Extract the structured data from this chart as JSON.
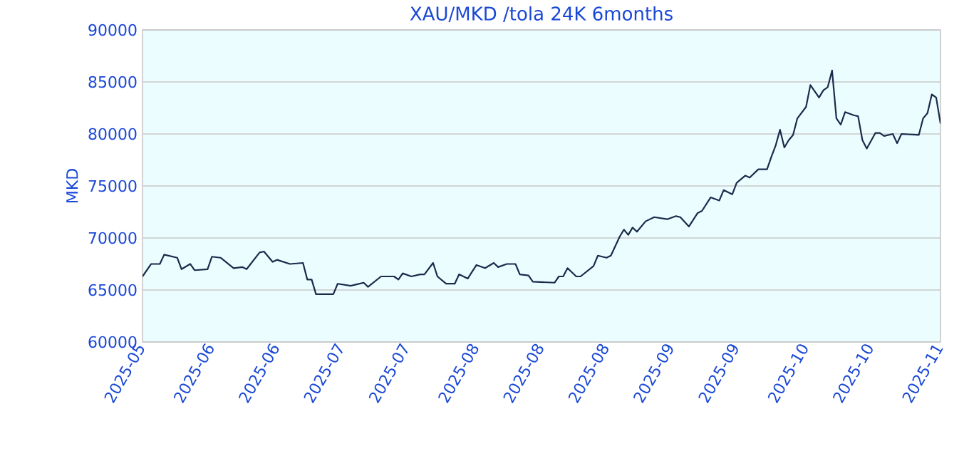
{
  "chart_data": {
    "type": "line",
    "title": "XAU/MKD /tola 24K 6months",
    "ylabel": "MKD",
    "x": [
      "2025-05-16",
      "2025-05-18",
      "2025-05-20",
      "2025-05-21",
      "2025-05-24",
      "2025-05-25",
      "2025-05-27",
      "2025-05-28",
      "2025-05-31",
      "2025-06-01",
      "2025-06-03",
      "2025-06-06",
      "2025-06-08",
      "2025-06-09",
      "2025-06-12",
      "2025-06-13",
      "2025-06-15",
      "2025-06-16",
      "2025-06-19",
      "2025-06-22",
      "2025-06-23",
      "2025-06-24",
      "2025-06-25",
      "2025-06-29",
      "2025-06-30",
      "2025-07-03",
      "2025-07-06",
      "2025-07-07",
      "2025-07-10",
      "2025-07-13",
      "2025-07-14",
      "2025-07-15",
      "2025-07-17",
      "2025-07-19",
      "2025-07-20",
      "2025-07-22",
      "2025-07-23",
      "2025-07-25",
      "2025-07-27",
      "2025-07-28",
      "2025-07-30",
      "2025-08-01",
      "2025-08-03",
      "2025-08-05",
      "2025-08-06",
      "2025-08-08",
      "2025-08-10",
      "2025-08-11",
      "2025-08-13",
      "2025-08-14",
      "2025-08-19",
      "2025-08-20",
      "2025-08-21",
      "2025-08-22",
      "2025-08-24",
      "2025-08-25",
      "2025-08-28",
      "2025-08-29",
      "2025-08-31",
      "2025-09-01",
      "2025-09-03",
      "2025-09-04",
      "2025-09-05",
      "2025-09-06",
      "2025-09-07",
      "2025-09-09",
      "2025-09-11",
      "2025-09-14",
      "2025-09-16",
      "2025-09-17",
      "2025-09-19",
      "2025-09-21",
      "2025-09-22",
      "2025-09-24",
      "2025-09-26",
      "2025-09-27",
      "2025-09-29",
      "2025-09-30",
      "2025-10-02",
      "2025-10-03",
      "2025-10-05",
      "2025-10-07",
      "2025-10-08",
      "2025-10-09",
      "2025-10-10",
      "2025-10-11",
      "2025-10-12",
      "2025-10-13",
      "2025-10-14",
      "2025-10-16",
      "2025-10-17",
      "2025-10-19",
      "2025-10-20",
      "2025-10-21",
      "2025-10-22",
      "2025-10-23",
      "2025-10-24",
      "2025-10-25",
      "2025-10-27",
      "2025-10-28",
      "2025-10-29",
      "2025-10-30",
      "2025-11-01",
      "2025-11-02",
      "2025-11-03",
      "2025-11-05",
      "2025-11-06",
      "2025-11-07",
      "2025-11-11",
      "2025-11-12",
      "2025-11-13",
      "2025-11-14",
      "2025-11-15",
      "2025-11-16"
    ],
    "series": [
      {
        "color": "#1a2b4c",
        "values": [
          66300,
          67500,
          67500,
          68400,
          68100,
          67000,
          67500,
          66900,
          67000,
          68200,
          68100,
          67100,
          67200,
          67000,
          68600,
          68700,
          67700,
          67900,
          67500,
          67600,
          66000,
          66000,
          64600,
          64600,
          65600,
          65400,
          65700,
          65300,
          66300,
          66300,
          66000,
          66600,
          66300,
          66500,
          66500,
          67600,
          66300,
          65600,
          65600,
          66500,
          66100,
          67400,
          67100,
          67600,
          67200,
          67500,
          67500,
          66500,
          66400,
          65800,
          65700,
          66300,
          66300,
          67100,
          66300,
          66300,
          67300,
          68300,
          68100,
          68300,
          70100,
          70800,
          70300,
          71000,
          70600,
          71600,
          72000,
          71800,
          72100,
          72000,
          71100,
          72400,
          72600,
          73900,
          73600,
          74600,
          74200,
          75300,
          76000,
          75800,
          76600,
          76600,
          77800,
          78900,
          80400,
          78700,
          79400,
          79900,
          81500,
          82600,
          84700,
          83500,
          84200,
          84500,
          86100,
          81500,
          80900,
          82100,
          81800,
          81700,
          79400,
          78600,
          80100,
          80100,
          79800,
          80000,
          79100,
          80000,
          79900,
          81500,
          82000,
          83800,
          83500,
          81000
        ]
      }
    ],
    "xlim": [
      "2025-05-16",
      "2025-11-16"
    ],
    "xticks": [
      {
        "value": "2025-05-16",
        "label": "2025-05"
      },
      {
        "value": "2025-06-01",
        "label": "2025-06"
      },
      {
        "value": "2025-06-16",
        "label": "2025-06"
      },
      {
        "value": "2025-07-01",
        "label": "2025-07"
      },
      {
        "value": "2025-07-16",
        "label": "2025-07"
      },
      {
        "value": "2025-08-01",
        "label": "2025-08"
      },
      {
        "value": "2025-08-16",
        "label": "2025-08"
      },
      {
        "value": "2025-08-31",
        "label": "2025-08"
      },
      {
        "value": "2025-09-15",
        "label": "2025-09"
      },
      {
        "value": "2025-09-30",
        "label": "2025-09"
      },
      {
        "value": "2025-10-16",
        "label": "2025-10"
      },
      {
        "value": "2025-10-31",
        "label": "2025-10"
      },
      {
        "value": "2025-11-16",
        "label": "2025-11"
      }
    ],
    "ylim": [
      60000,
      90000
    ],
    "yticks": [
      60000,
      65000,
      70000,
      75000,
      80000,
      85000,
      90000
    ],
    "grid": "y",
    "line_style": "solid"
  }
}
